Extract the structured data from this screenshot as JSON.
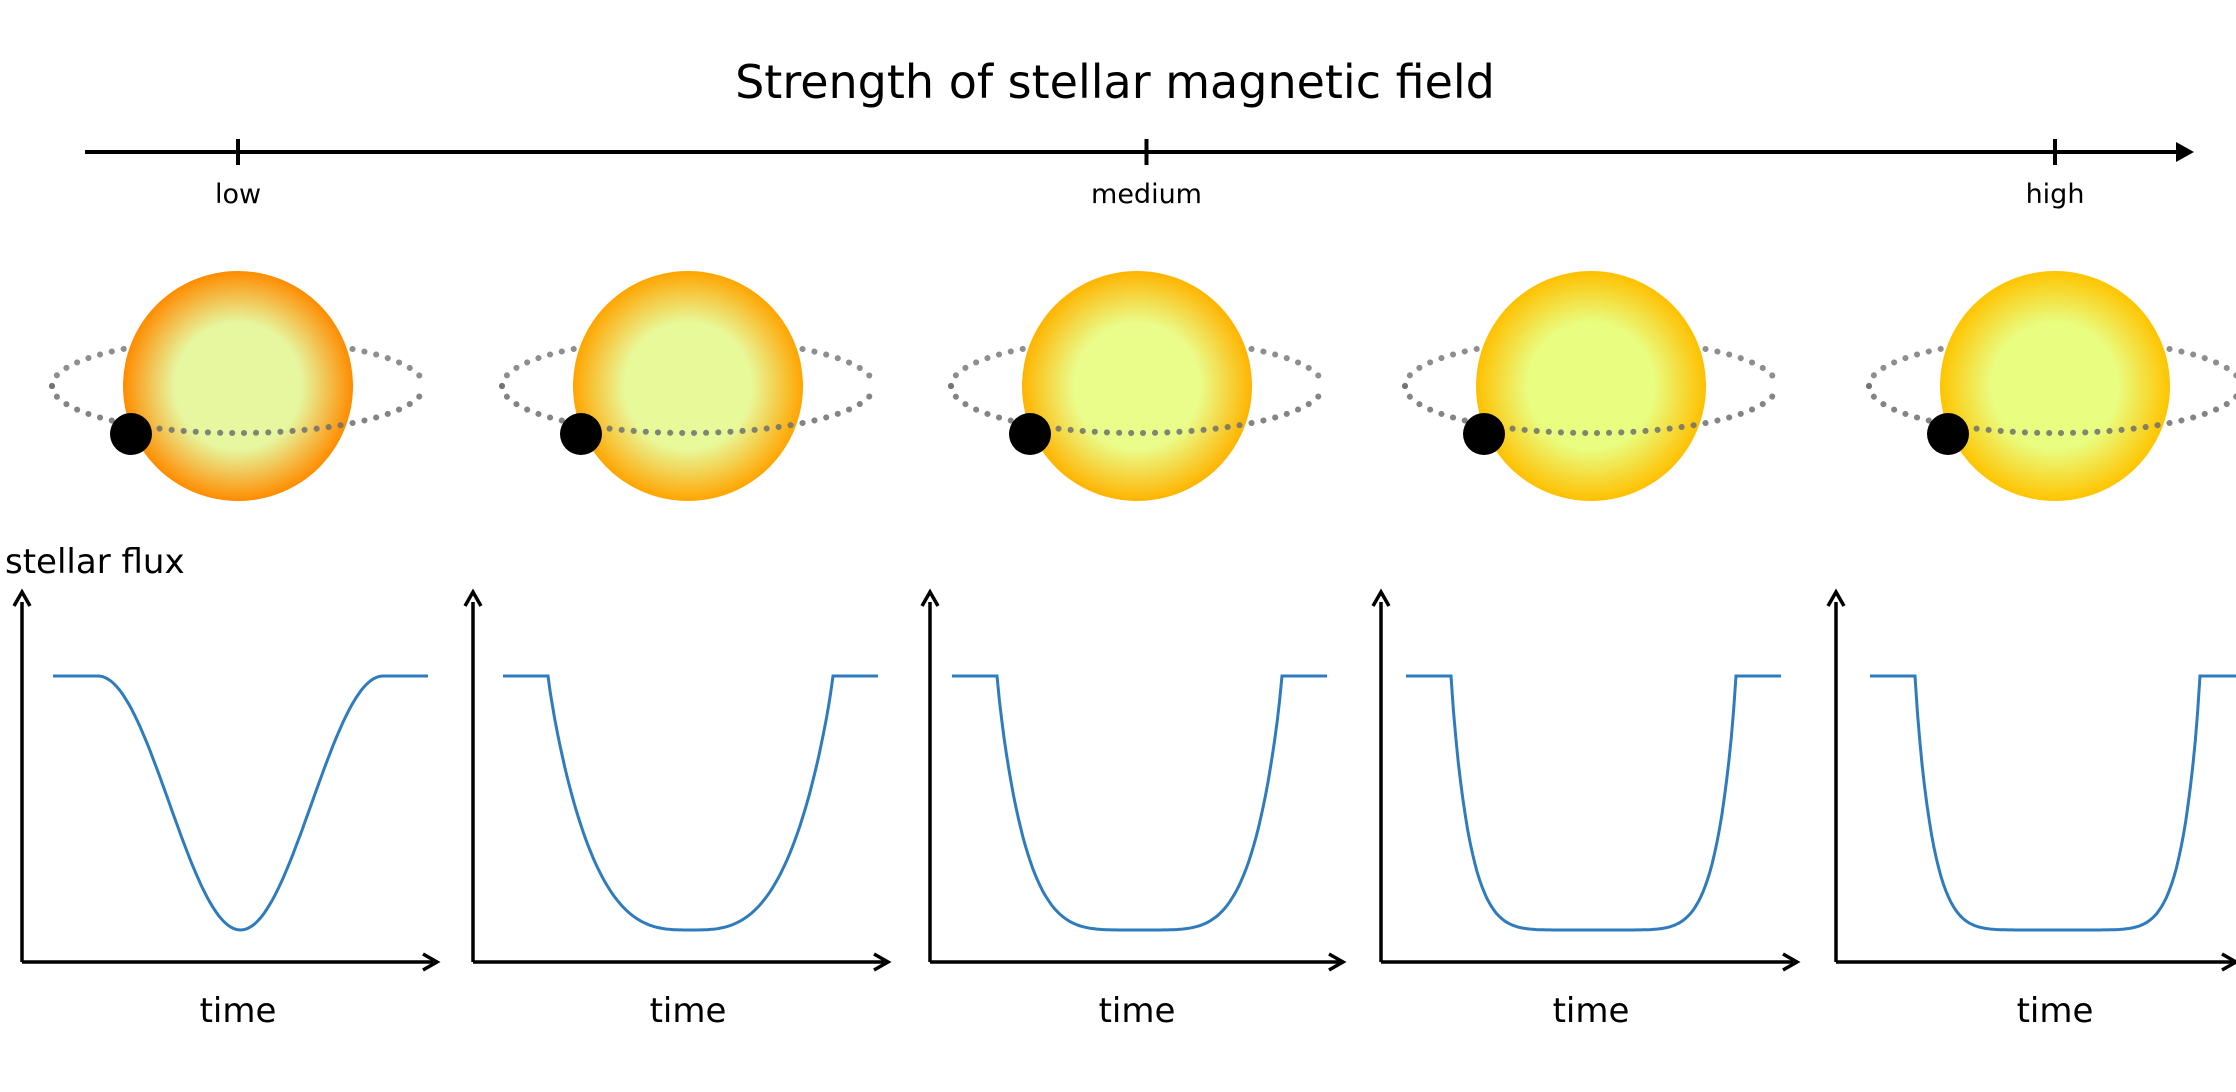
{
  "title": "Strength of stellar magnetic field",
  "scale": {
    "ticks": [
      {
        "label": "low",
        "position": 0
      },
      {
        "label": "medium",
        "position": 0.5
      },
      {
        "label": "high",
        "position": 1
      }
    ]
  },
  "colors": {
    "curve": "#2e7bbd",
    "axis": "#000000",
    "orbit": "#8e8e8e",
    "planet": "#000000"
  },
  "ylabel": "stellar flux",
  "xlabel": "time",
  "panels": [
    {
      "star_core": "#e6f7a0",
      "star_edge": "#ff8c00",
      "planet_phase": 0.0,
      "dip_shape": 1.0
    },
    {
      "star_core": "#e8f99a",
      "star_edge": "#ffa500",
      "planet_phase": 0.0,
      "dip_shape": 2.0
    },
    {
      "star_core": "#eafc8a",
      "star_edge": "#ffb400",
      "planet_phase": 0.0,
      "dip_shape": 3.5
    },
    {
      "star_core": "#e9fd80",
      "star_edge": "#ffc000",
      "planet_phase": 0.0,
      "dip_shape": 7.0
    },
    {
      "star_core": "#e9fd80",
      "star_edge": "#ffc400",
      "planet_phase": 0.0,
      "dip_shape": 8.0
    }
  ]
}
